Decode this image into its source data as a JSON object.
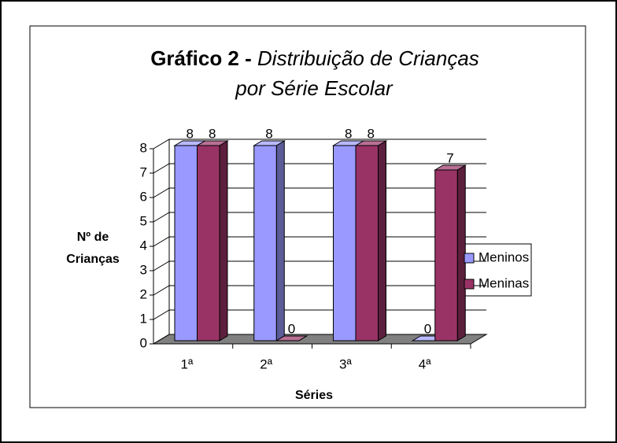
{
  "chart_data": {
    "type": "bar3d",
    "title": "Gráfico 2 -",
    "subtitle": [
      "Distribuição de Crianças",
      "por Série Escolar"
    ],
    "ylabel": [
      "Nº de",
      "Crianças"
    ],
    "xlabel": "Séries",
    "categories": [
      "1ª",
      "2ª",
      "3ª",
      "4ª"
    ],
    "series": [
      {
        "name": "Meninos",
        "color": "#9999FF",
        "values": [
          8,
          8,
          8,
          0
        ]
      },
      {
        "name": "Meninas",
        "color": "#993366",
        "values": [
          8,
          0,
          8,
          7
        ]
      }
    ],
    "ylim": [
      0,
      8
    ],
    "yticks": [
      0,
      1,
      2,
      3,
      4,
      5,
      6,
      7,
      8
    ],
    "grid": true,
    "legend": "right"
  }
}
